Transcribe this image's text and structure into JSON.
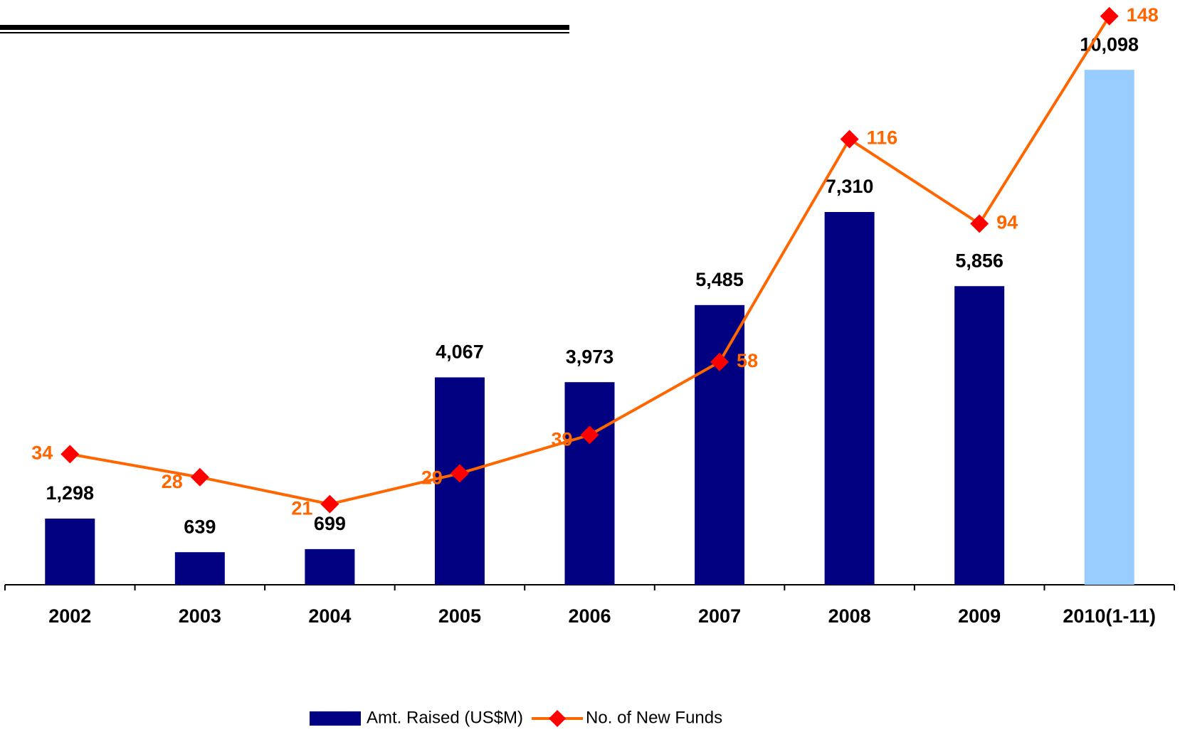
{
  "chart_data": {
    "type": "bar_line",
    "categories": [
      "2002",
      "2003",
      "2004",
      "2005",
      "2006",
      "2007",
      "2008",
      "2009",
      "2010(1-11)"
    ],
    "series": [
      {
        "name": "Amt. Raised (US$M)",
        "type": "bar",
        "color": "#000080",
        "colors": [
          "#000080",
          "#000080",
          "#000080",
          "#000080",
          "#000080",
          "#000080",
          "#000080",
          "#000080",
          "#99ccff"
        ],
        "values": [
          1298,
          639,
          699,
          4067,
          3973,
          5485,
          7310,
          5856,
          10098
        ],
        "value_labels": [
          "1,298",
          "639",
          "699",
          "4,067",
          "3,973",
          "5,485",
          "7,310",
          "5,856",
          "10,098"
        ]
      },
      {
        "name": "No. of New Funds",
        "type": "line",
        "axis": "y2",
        "color": "#ff6600",
        "marker_color": "#ff0000",
        "values": [
          34,
          28,
          21,
          29,
          39,
          58,
          116,
          94,
          148
        ]
      }
    ],
    "ylim": [
      0,
      11300
    ],
    "y2lim": [
      0,
      150
    ],
    "legend": "bottom"
  }
}
